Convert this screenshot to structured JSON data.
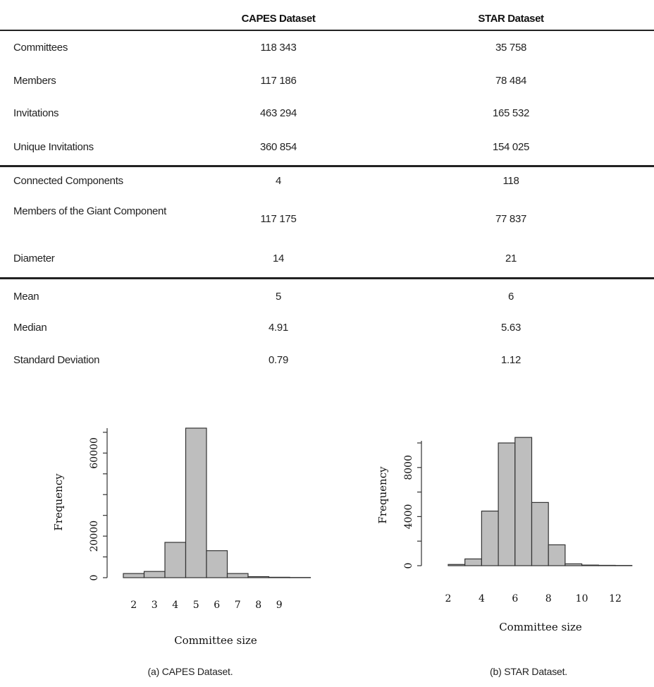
{
  "table": {
    "headers": [
      "",
      "CAPES Dataset",
      "STAR Dataset"
    ],
    "rows": [
      {
        "label": "Committees",
        "capes": "118 343",
        "star": "35 758"
      },
      {
        "label": "Members",
        "capes": "117 186",
        "star": "78 484"
      },
      {
        "label": "Invitations",
        "capes": "463 294",
        "star": "165 532"
      },
      {
        "label": "Unique Invitations",
        "capes": "360 854",
        "star": "154 025"
      },
      {
        "label": "Connected Components",
        "capes": "4",
        "star": "118"
      },
      {
        "label": "Members of the Giant Component",
        "capes": "117 175",
        "star": "77 837"
      },
      {
        "label": "Diameter",
        "capes": "14",
        "star": "21"
      },
      {
        "label": "Mean",
        "capes": "5",
        "star": "6"
      },
      {
        "label": "Median",
        "capes": "4.91",
        "star": "5.63"
      },
      {
        "label": "Standard Deviation",
        "capes": "0.79",
        "star": "1.12"
      }
    ]
  },
  "chart_data": [
    {
      "type": "bar",
      "title": "",
      "caption": "(a) CAPES Dataset.",
      "xlabel": "Committee size",
      "ylabel": "Frequency",
      "categories": [
        2,
        3,
        4,
        5,
        6,
        7,
        8,
        9,
        10
      ],
      "values": [
        2000,
        3000,
        17000,
        72000,
        13000,
        2000,
        500,
        200,
        100
      ],
      "x_tick_labels": [
        "2",
        "3",
        "4",
        "5",
        "6",
        "7",
        "8",
        "9"
      ],
      "y_ticks": [
        0,
        20000,
        60000
      ],
      "y_tick_labels": [
        "0",
        "20000",
        "60000"
      ],
      "ylim": [
        0,
        72000
      ],
      "bar_color": "#bebebe"
    },
    {
      "type": "bar",
      "title": "",
      "caption": "(b) STAR Dataset.",
      "xlabel": "Committee size",
      "ylabel": "Frequency",
      "categories": [
        2,
        3,
        4,
        5,
        6,
        7,
        8,
        9,
        10,
        11,
        12
      ],
      "values": [
        100,
        550,
        4450,
        10000,
        10450,
        5150,
        1700,
        150,
        50,
        30,
        20
      ],
      "x_ticks": [
        2,
        4,
        6,
        8,
        10,
        12
      ],
      "x_tick_labels": [
        "2",
        "4",
        "6",
        "8",
        "10",
        "12"
      ],
      "y_ticks": [
        0,
        4000,
        8000
      ],
      "y_tick_labels": [
        "0",
        "4000",
        "8000"
      ],
      "ylim": [
        0,
        10000
      ],
      "bar_color": "#bebebe"
    }
  ]
}
